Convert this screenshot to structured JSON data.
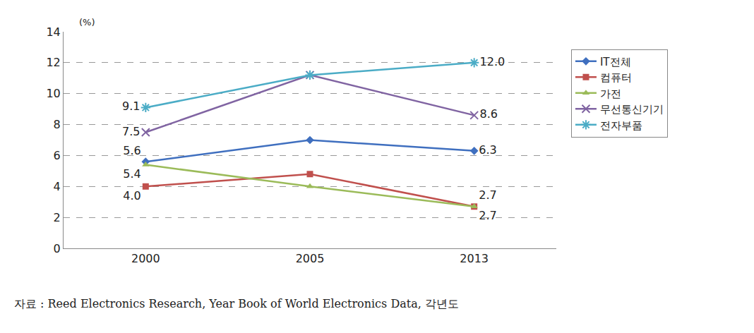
{
  "chart_data": {
    "type": "line",
    "y_label": "(%)",
    "categories": [
      "2000",
      "2005",
      "2013"
    ],
    "ylim": [
      0,
      14
    ],
    "yticks": [
      0,
      2,
      4,
      6,
      8,
      10,
      12,
      14
    ],
    "grid": true,
    "legend": "right",
    "source": "자료 : Reed Electronics Research, Year Book of World Electronics Data, 각년도",
    "series": [
      {
        "name": "IT전체",
        "color": "#3F6FBF",
        "marker": "diamond",
        "values": [
          5.6,
          7.0,
          6.3
        ],
        "value_labels": [
          "5.6",
          null,
          "6.3"
        ]
      },
      {
        "name": "컴퓨터",
        "color": "#C0504D",
        "marker": "square",
        "values": [
          4.0,
          4.8,
          2.7
        ],
        "value_labels": [
          "4.0",
          null,
          "2.7"
        ]
      },
      {
        "name": "가전",
        "color": "#9BBB59",
        "marker": "triangle-up",
        "values": [
          5.4,
          4.0,
          2.7
        ],
        "value_labels": [
          "5.4",
          null,
          "2.7"
        ]
      },
      {
        "name": "무선통신기기",
        "color": "#8064A2",
        "marker": "x",
        "values": [
          7.5,
          11.2,
          8.6
        ],
        "value_labels": [
          "7.5",
          null,
          "8.6"
        ]
      },
      {
        "name": "전자부품",
        "color": "#4BACC6",
        "marker": "asterisk",
        "values": [
          9.1,
          11.2,
          12.0
        ],
        "value_labels": [
          "9.1",
          null,
          "12.0"
        ]
      }
    ]
  }
}
